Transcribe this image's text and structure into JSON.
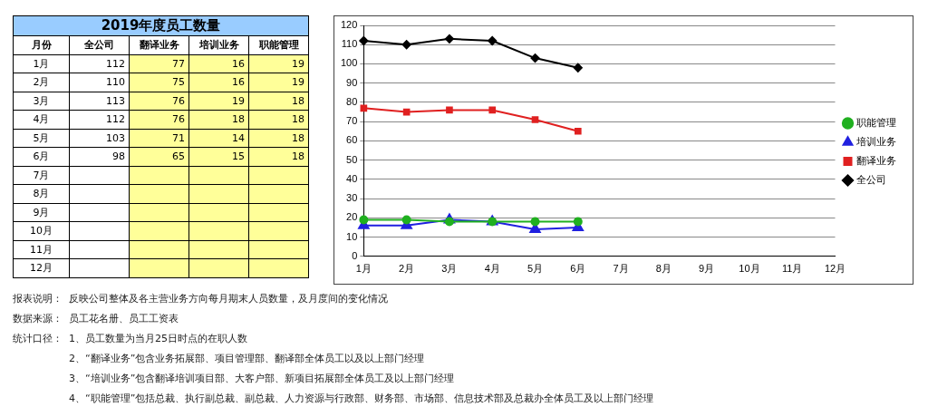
{
  "chart_data": [
    {
      "type": "heatmap",
      "title": "2019年度员工数量",
      "ylabel": "月份",
      "data_labels": true,
      "categories": [
        "全公司",
        "翻译业务",
        "培训业务",
        "职能管理"
      ],
      "y_categories": [
        "1月",
        "2月",
        "3月",
        "4月",
        "5月",
        "6月",
        "7月",
        "8月",
        "9月",
        "10月",
        "11月",
        "12月"
      ],
      "cells": [
        [
          112,
          77,
          16,
          19
        ],
        [
          110,
          75,
          16,
          19
        ],
        [
          113,
          76,
          19,
          18
        ],
        [
          112,
          76,
          18,
          18
        ],
        [
          103,
          71,
          14,
          18
        ],
        [
          98,
          65,
          15,
          18
        ],
        [
          null,
          null,
          null,
          null
        ],
        [
          null,
          null,
          null,
          null
        ],
        [
          null,
          null,
          null,
          null
        ],
        [
          null,
          null,
          null,
          null
        ],
        [
          null,
          null,
          null,
          null
        ],
        [
          null,
          null,
          null,
          null
        ]
      ],
      "annotations": [
        "报表说明：",
        "反映公司整体及各主营业务方向每月期末人员数量，及月度间的变化情况",
        "数据来源：",
        "员工花名册、员工工资表",
        "统计口径：",
        "1、员工数量为当月25日时点的在职人数",
        "2、“翻译业务”包含业务拓展部、项目管理部、翻译部全体员工以及以上部门经理",
        "3、“培训业务”包含翻译培训项目部、大客户部、新项目拓展部全体员工及以上部门经理",
        "4、“职能管理”包括总裁、执行副总裁、副总裁、人力资源与行政部、财务部、市场部、信息技术部及总裁办全体员工及以上部门经理"
      ]
    },
    {
      "type": "line",
      "categories": [
        "1月",
        "2月",
        "3月",
        "4月",
        "5月",
        "6月",
        "7月",
        "8月",
        "9月",
        "10月",
        "11月",
        "12月"
      ],
      "series": [
        {
          "name": "全公司",
          "color": "#000000",
          "marker": "diamond",
          "values": [
            112,
            110,
            113,
            112,
            103,
            98,
            null,
            null,
            null,
            null,
            null,
            null
          ]
        },
        {
          "name": "翻译业务",
          "color": "#e02020",
          "marker": "square",
          "values": [
            77,
            75,
            76,
            76,
            71,
            65,
            null,
            null,
            null,
            null,
            null,
            null
          ]
        },
        {
          "name": "培训业务",
          "color": "#2020e0",
          "marker": "triangle",
          "values": [
            16,
            16,
            19,
            18,
            14,
            15,
            null,
            null,
            null,
            null,
            null,
            null
          ]
        },
        {
          "name": "职能管理",
          "color": "#20b020",
          "marker": "circle",
          "values": [
            19,
            19,
            18,
            18,
            18,
            18,
            null,
            null,
            null,
            null,
            null,
            null
          ]
        }
      ],
      "ylim": [
        0,
        120
      ],
      "yticks": [
        0,
        10,
        20,
        30,
        40,
        50,
        60,
        70,
        80,
        90,
        100,
        110,
        120
      ],
      "grid": "y",
      "legend": "right"
    }
  ]
}
